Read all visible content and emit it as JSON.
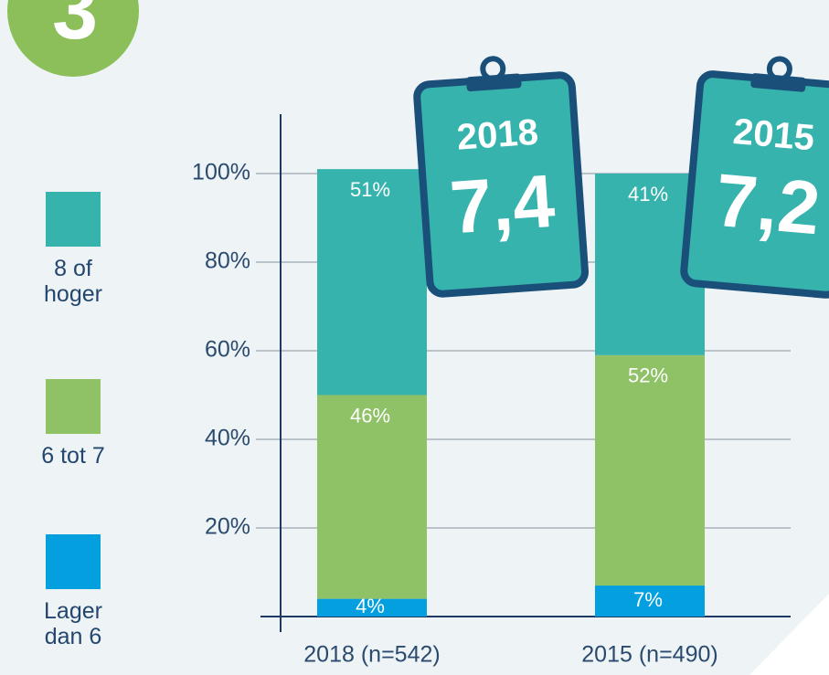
{
  "chart_data": {
    "type": "stacked_bar",
    "badge": "3",
    "categories": [
      "2018 (n=542)",
      "2015 (n=490)"
    ],
    "series": [
      {
        "name": "Lager dan 6",
        "color": "#039fdf",
        "values": [
          4,
          7
        ],
        "value_labels": [
          "4%",
          "7%"
        ]
      },
      {
        "name": "6 tot 7",
        "color": "#8fc166",
        "values": [
          46,
          52
        ],
        "value_labels": [
          "46%",
          "52%"
        ]
      },
      {
        "name": "8 of hoger",
        "color": "#37b3ae",
        "values": [
          51,
          41
        ],
        "value_labels": [
          "51%",
          "41%"
        ]
      }
    ],
    "ylim": [
      0,
      100
    ],
    "yticks": [
      {
        "value": 20,
        "label": "20%"
      },
      {
        "value": 40,
        "label": "40%"
      },
      {
        "value": 60,
        "label": "60%"
      },
      {
        "value": 80,
        "label": "80%"
      },
      {
        "value": 100,
        "label": "100%"
      }
    ],
    "grid": true,
    "annotations": [
      {
        "year": "2018",
        "score": "7,4"
      },
      {
        "year": "2015",
        "score": "7,2"
      }
    ]
  }
}
